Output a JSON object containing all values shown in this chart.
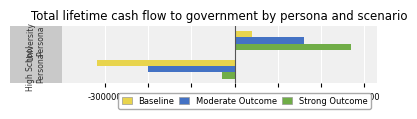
{
  "title": "Total lifetime cash flow to government by persona and scenario",
  "categories": [
    "University\nPersona",
    "High School\nPersona"
  ],
  "series": {
    "Baseline": [
      40000,
      -320000
    ],
    "Moderate Outcome": [
      160000,
      -200000
    ],
    "Strong Outcome": [
      270000,
      -30000
    ]
  },
  "colors": {
    "Baseline": "#E8D44D",
    "Moderate Outcome": "#4472C4",
    "Strong Outcome": "#70AD47"
  },
  "xlim": [
    -400000,
    330000
  ],
  "xticks": [
    -300000,
    -200000,
    -100000,
    0,
    100000,
    200000,
    300000
  ],
  "bar_height": 0.22,
  "background_color": "#FFFFFF",
  "plot_bg_color": "#F0F0F0",
  "grid_color": "#FFFFFF",
  "title_fontsize": 8.5,
  "ylabel_box_color": "#C0C0C0"
}
